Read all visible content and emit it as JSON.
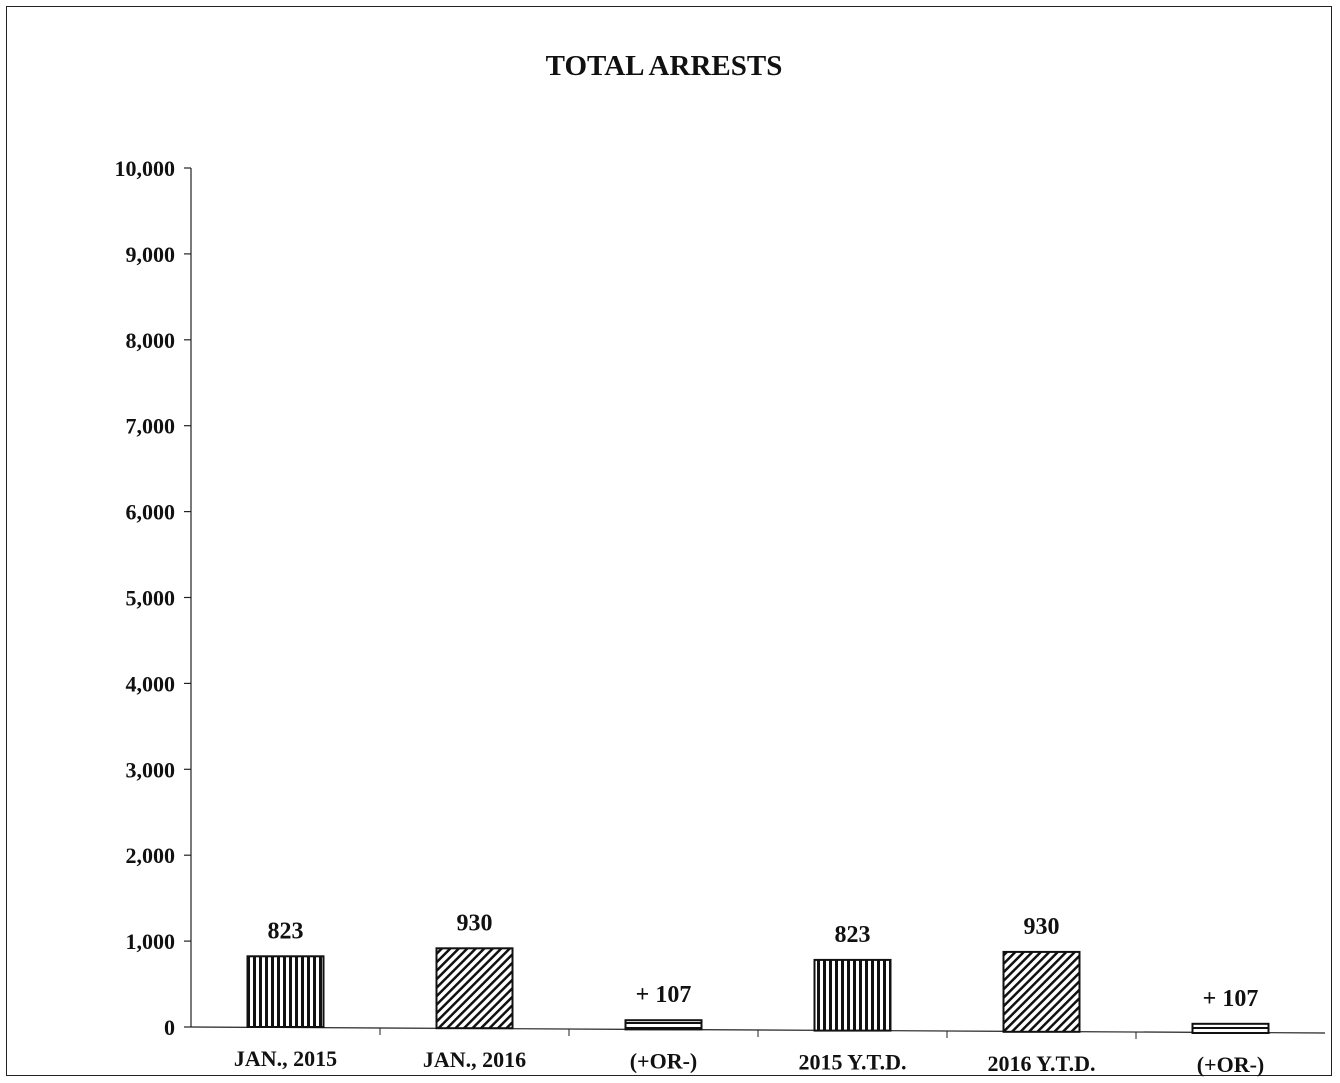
{
  "chart_data": {
    "type": "bar",
    "title": "TOTAL ARRESTS",
    "xlabel": "",
    "ylabel": "",
    "ylim": [
      0,
      10000
    ],
    "yticks": [
      0,
      1000,
      2000,
      3000,
      4000,
      5000,
      6000,
      7000,
      8000,
      9000,
      10000
    ],
    "ytick_labels": [
      "0",
      "1,000",
      "2,000",
      "3,000",
      "4,000",
      "5,000",
      "6,000",
      "7,000",
      "8,000",
      "9,000",
      "10,000"
    ],
    "categories": [
      "JAN., 2015",
      "JAN., 2016",
      "(+OR-)",
      "2015 Y.T.D.",
      "2016 Y.T.D.",
      "(+OR-)"
    ],
    "values": [
      823,
      930,
      107,
      823,
      930,
      107
    ],
    "data_labels": [
      "823",
      "930",
      "+ 107",
      "823",
      "930",
      "+ 107"
    ],
    "patterns": [
      "vertical",
      "diagonal",
      "horizontal",
      "vertical",
      "diagonal",
      "horizontal"
    ],
    "grid": false,
    "legend": "none"
  }
}
